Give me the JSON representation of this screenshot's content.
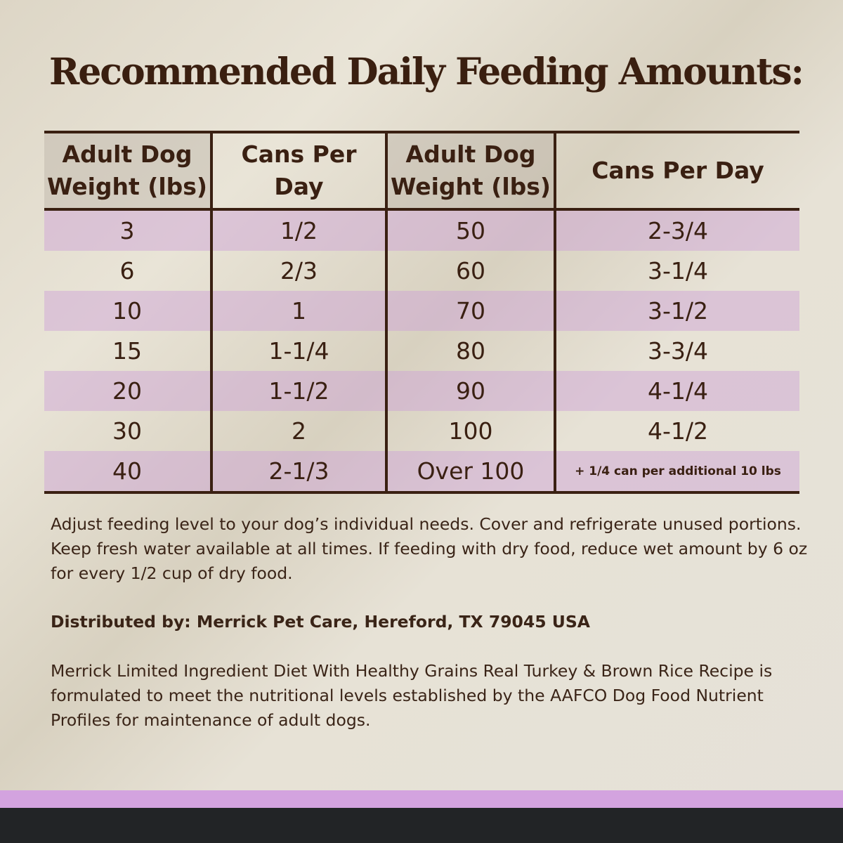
{
  "title": "Recommended Daily Feeding Amounts:",
  "table": {
    "headers": [
      "Adult Dog Weight (lbs)",
      "Cans Per Day",
      "Adult Dog Weight (lbs)",
      "Cans Per Day"
    ],
    "rows": [
      [
        "3",
        "1/2",
        "50",
        "2-3/4"
      ],
      [
        "6",
        "2/3",
        "60",
        "3-1/4"
      ],
      [
        "10",
        "1",
        "70",
        "3-1/2"
      ],
      [
        "15",
        "1-1/4",
        "80",
        "3-3/4"
      ],
      [
        "20",
        "1-1/2",
        "90",
        "4-1/4"
      ],
      [
        "30",
        "2",
        "100",
        "4-1/2"
      ],
      [
        "40",
        "2-1/3",
        "Over 100",
        "+ 1/4 can per additional 10 lbs"
      ]
    ]
  },
  "instructions": "Adjust feeding level to your dog’s individual needs. Cover and refrigerate unused portions. Keep fresh water available at all times. If feeding with dry food, reduce wet amount by 6 oz for every 1/2 cup of dry food.",
  "distributor": "Distributed by: Merrick Pet Care, Hereford, TX 79045 USA",
  "aafco": "Merrick Limited Ingredient Diet With Healthy Grains Real Turkey & Brown Rice Recipe is formulated to meet the nutritional levels established by the AAFCO Dog Food Nutrient Profiles for maintenance of adult dogs.",
  "colors": {
    "accent_bar": "#d3a3df",
    "footer_bar": "#222426",
    "text": "#3a2012",
    "row_highlight": "#e3cbe3"
  }
}
